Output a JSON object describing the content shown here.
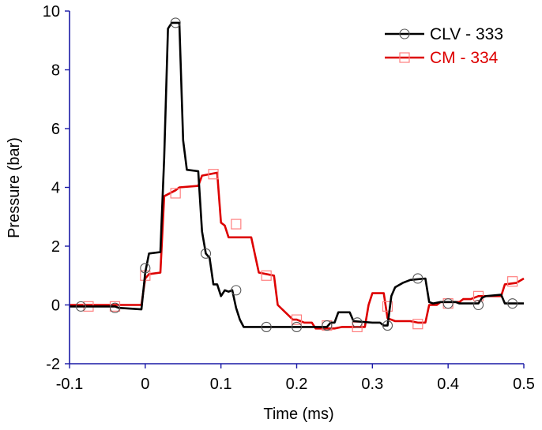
{
  "chart_data": {
    "type": "line",
    "title": "",
    "xlabel": "Time (ms)",
    "ylabel": "Pressure (bar)",
    "xlim": [
      -0.1,
      0.5
    ],
    "ylim": [
      -2,
      10
    ],
    "xticks": [
      -0.1,
      0,
      0.1,
      0.2,
      0.3,
      0.4,
      0.5
    ],
    "xtick_labels": [
      "-0.1",
      "0",
      "0.1",
      "0.2",
      "0.3",
      "0.4",
      "0.5"
    ],
    "yticks": [
      -2,
      0,
      2,
      4,
      6,
      8,
      10
    ],
    "ytick_labels": [
      "-2",
      "0",
      "2",
      "4",
      "6",
      "8",
      "10"
    ],
    "grid": false,
    "legend_position": "top-right",
    "series": [
      {
        "name": "CLV - 333",
        "color": "#000000",
        "marker": "circle",
        "line": [
          [
            -0.1,
            -0.05
          ],
          [
            -0.04,
            -0.05
          ],
          [
            -0.035,
            -0.1
          ],
          [
            -0.005,
            -0.15
          ],
          [
            0.0,
            1.1
          ],
          [
            0.005,
            1.75
          ],
          [
            0.02,
            1.8
          ],
          [
            0.025,
            5.0
          ],
          [
            0.03,
            9.4
          ],
          [
            0.035,
            9.6
          ],
          [
            0.045,
            9.6
          ],
          [
            0.05,
            5.6
          ],
          [
            0.055,
            4.6
          ],
          [
            0.07,
            4.55
          ],
          [
            0.075,
            2.5
          ],
          [
            0.08,
            1.75
          ],
          [
            0.085,
            1.6
          ],
          [
            0.09,
            0.7
          ],
          [
            0.095,
            0.7
          ],
          [
            0.1,
            0.3
          ],
          [
            0.105,
            0.5
          ],
          [
            0.11,
            0.45
          ],
          [
            0.115,
            0.5
          ],
          [
            0.12,
            -0.1
          ],
          [
            0.125,
            -0.5
          ],
          [
            0.13,
            -0.75
          ],
          [
            0.15,
            -0.75
          ],
          [
            0.24,
            -0.75
          ],
          [
            0.245,
            -0.6
          ],
          [
            0.25,
            -0.6
          ],
          [
            0.255,
            -0.25
          ],
          [
            0.27,
            -0.25
          ],
          [
            0.275,
            -0.55
          ],
          [
            0.3,
            -0.6
          ],
          [
            0.31,
            -0.6
          ],
          [
            0.315,
            -0.7
          ],
          [
            0.32,
            -0.7
          ],
          [
            0.325,
            0.3
          ],
          [
            0.33,
            0.6
          ],
          [
            0.34,
            0.75
          ],
          [
            0.35,
            0.85
          ],
          [
            0.37,
            0.9
          ],
          [
            0.375,
            0.1
          ],
          [
            0.38,
            0.05
          ],
          [
            0.39,
            0.1
          ],
          [
            0.41,
            0.1
          ],
          [
            0.415,
            0.05
          ],
          [
            0.44,
            0.05
          ],
          [
            0.445,
            0.25
          ],
          [
            0.45,
            0.3
          ],
          [
            0.47,
            0.35
          ],
          [
            0.475,
            0.05
          ],
          [
            0.5,
            0.05
          ]
        ],
        "markers": [
          [
            -0.085,
            -0.05
          ],
          [
            -0.04,
            -0.1
          ],
          [
            0.0,
            1.25
          ],
          [
            0.04,
            9.6
          ],
          [
            0.08,
            1.75
          ],
          [
            0.12,
            0.5
          ],
          [
            0.16,
            -0.75
          ],
          [
            0.2,
            -0.75
          ],
          [
            0.24,
            -0.7
          ],
          [
            0.28,
            -0.6
          ],
          [
            0.32,
            -0.7
          ],
          [
            0.36,
            0.9
          ],
          [
            0.4,
            0.05
          ],
          [
            0.44,
            0.0
          ],
          [
            0.485,
            0.05
          ]
        ]
      },
      {
        "name": "CM - 334",
        "color": "#dd0000",
        "marker_color": "#ff7f7f",
        "marker": "square",
        "line": [
          [
            -0.1,
            0.0
          ],
          [
            -0.005,
            0.0
          ],
          [
            0.0,
            0.9
          ],
          [
            0.005,
            1.05
          ],
          [
            0.02,
            1.1
          ],
          [
            0.025,
            3.7
          ],
          [
            0.04,
            3.9
          ],
          [
            0.045,
            4.0
          ],
          [
            0.07,
            4.05
          ],
          [
            0.075,
            4.4
          ],
          [
            0.095,
            4.5
          ],
          [
            0.1,
            2.8
          ],
          [
            0.105,
            2.7
          ],
          [
            0.11,
            2.3
          ],
          [
            0.125,
            2.3
          ],
          [
            0.13,
            2.3
          ],
          [
            0.14,
            2.3
          ],
          [
            0.15,
            1.1
          ],
          [
            0.17,
            1.0
          ],
          [
            0.175,
            0.0
          ],
          [
            0.195,
            -0.5
          ],
          [
            0.2,
            -0.5
          ],
          [
            0.21,
            -0.6
          ],
          [
            0.22,
            -0.6
          ],
          [
            0.225,
            -0.8
          ],
          [
            0.25,
            -0.8
          ],
          [
            0.26,
            -0.75
          ],
          [
            0.29,
            -0.75
          ],
          [
            0.295,
            0.0
          ],
          [
            0.3,
            0.4
          ],
          [
            0.315,
            0.4
          ],
          [
            0.32,
            -0.45
          ],
          [
            0.33,
            -0.55
          ],
          [
            0.35,
            -0.55
          ],
          [
            0.36,
            -0.6
          ],
          [
            0.37,
            -0.6
          ],
          [
            0.375,
            0.0
          ],
          [
            0.385,
            0.0
          ],
          [
            0.39,
            0.1
          ],
          [
            0.415,
            0.1
          ],
          [
            0.42,
            0.2
          ],
          [
            0.43,
            0.2
          ],
          [
            0.44,
            0.3
          ],
          [
            0.47,
            0.3
          ],
          [
            0.475,
            0.7
          ],
          [
            0.49,
            0.75
          ],
          [
            0.5,
            0.9
          ]
        ],
        "markers": [
          [
            -0.075,
            -0.05
          ],
          [
            -0.04,
            -0.05
          ],
          [
            0.0,
            1.0
          ],
          [
            0.04,
            3.8
          ],
          [
            0.09,
            4.45
          ],
          [
            0.12,
            2.75
          ],
          [
            0.16,
            1.0
          ],
          [
            0.2,
            -0.5
          ],
          [
            0.24,
            -0.7
          ],
          [
            0.28,
            -0.75
          ],
          [
            0.32,
            -0.05
          ],
          [
            0.36,
            -0.65
          ],
          [
            0.4,
            0.05
          ],
          [
            0.44,
            0.3
          ],
          [
            0.485,
            0.8
          ]
        ]
      }
    ]
  }
}
